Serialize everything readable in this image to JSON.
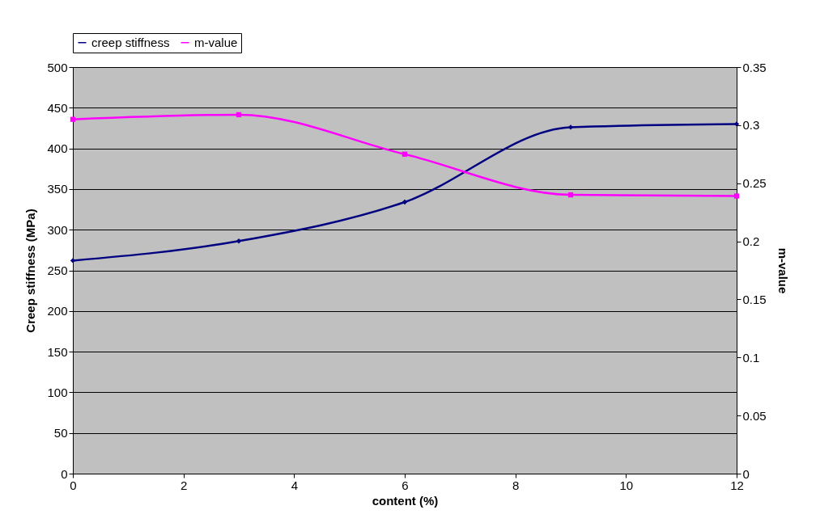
{
  "chart_data": {
    "type": "line",
    "xlabel": "content (%)",
    "ylabel": "Creep stiffness (MPa)",
    "y2label": "m-value",
    "x": [
      0,
      3,
      6,
      9,
      12
    ],
    "series": [
      {
        "name": "creep stiffness",
        "color": "#000080",
        "values": [
          262,
          286,
          334,
          426,
          430
        ],
        "marker": "diamond"
      },
      {
        "name": "m-value",
        "color": "#ff00ff",
        "values": [
          0.305,
          0.309,
          0.275,
          0.24,
          0.239
        ],
        "axis": "y2",
        "marker": "square"
      }
    ],
    "xlim": [
      0,
      12
    ],
    "xticks": [
      0,
      2,
      4,
      6,
      8,
      10,
      12
    ],
    "ylim": [
      0,
      500
    ],
    "yticks": [
      0,
      50,
      100,
      150,
      200,
      250,
      300,
      350,
      400,
      450,
      500
    ],
    "y2lim": [
      0,
      0.35
    ],
    "y2ticks": [
      0,
      0.05,
      0.1,
      0.15,
      0.2,
      0.25,
      0.3,
      0.35
    ],
    "grid": "y",
    "legend": "top",
    "line_style": "solid"
  }
}
